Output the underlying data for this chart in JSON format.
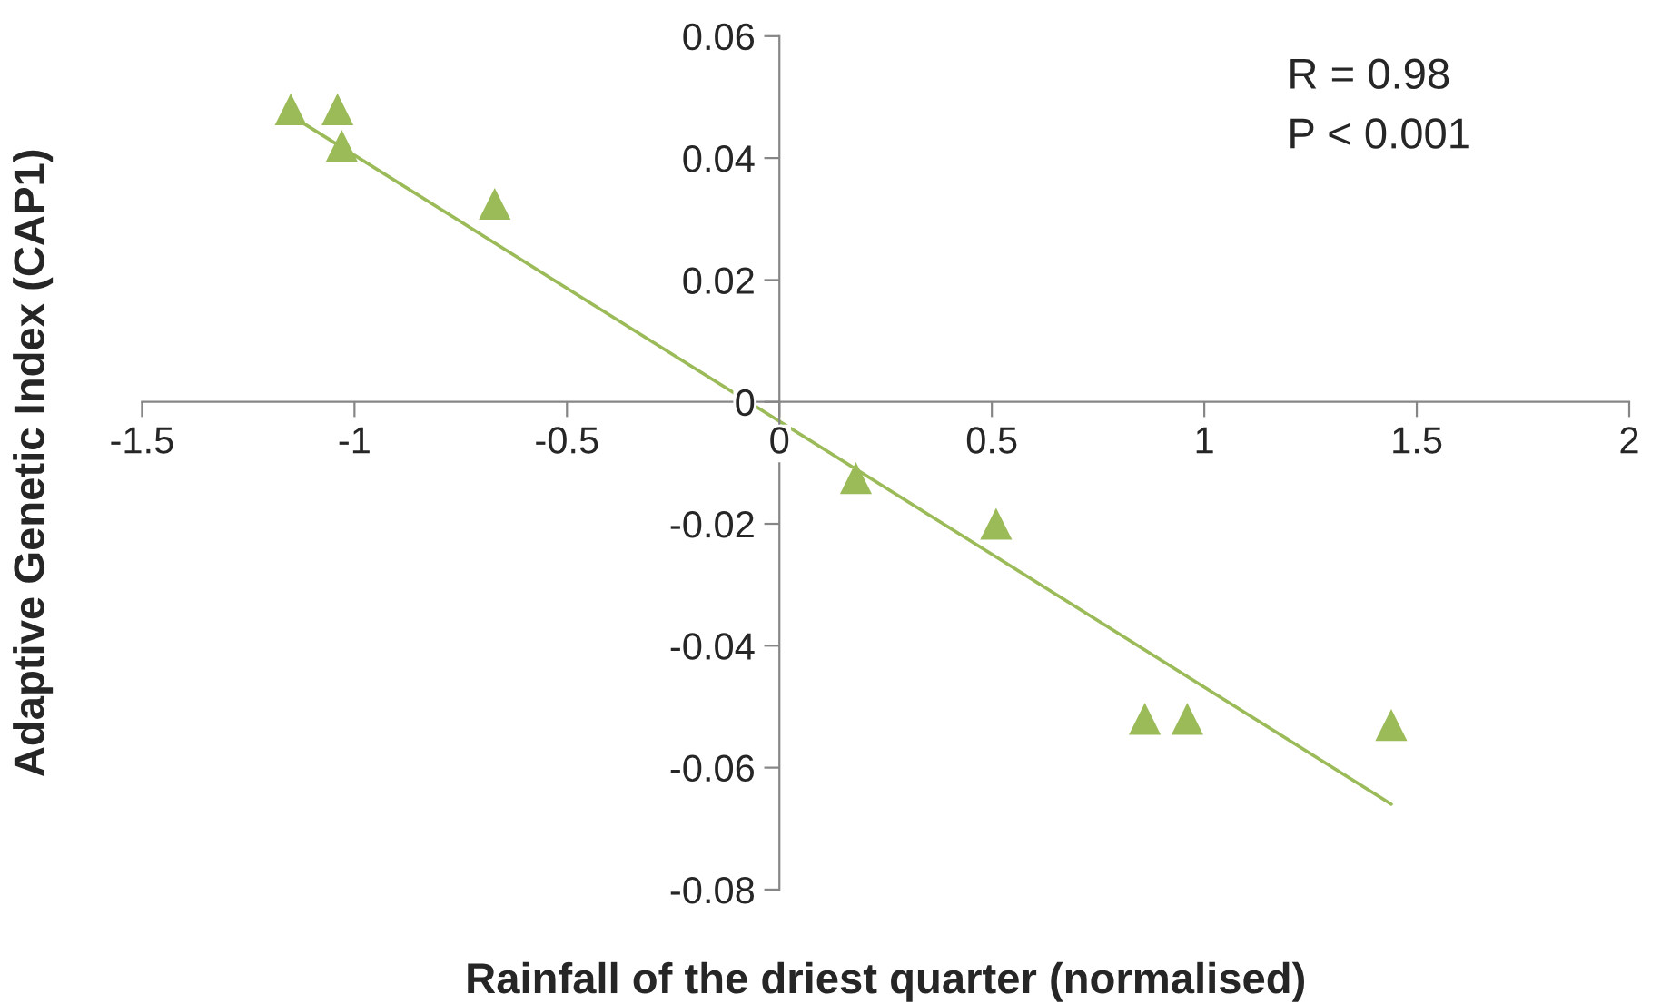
{
  "chart_data": {
    "type": "scatter",
    "xlabel": "Rainfall of the driest quarter (normalised)",
    "ylabel": "Adaptive Genetic Index (CAP1)",
    "series": [
      {
        "color": "#9bbb59",
        "marker": "triangle",
        "x": [
          -1.15,
          -1.04,
          -1.03,
          -0.67,
          0.18,
          0.51,
          0.86,
          0.96,
          1.44
        ],
        "values": [
          0.048,
          0.048,
          0.042,
          0.0325,
          -0.0125,
          -0.02,
          -0.052,
          -0.052,
          -0.053
        ]
      },
      {
        "type": "line",
        "color": "#9bbb59",
        "x": [
          -1.15,
          1.44
        ],
        "values": [
          0.047,
          -0.066
        ]
      }
    ],
    "xlim": [
      -1.5,
      2
    ],
    "xticks": [
      -1.5,
      -1,
      -0.5,
      0,
      0.5,
      1,
      1.5,
      2
    ],
    "ylim": [
      -0.08,
      0.06
    ],
    "yticks": [
      -0.08,
      -0.06,
      -0.04,
      -0.02,
      0,
      0.02,
      0.04,
      0.06
    ],
    "grid": false,
    "legend": false,
    "annotations": [
      "R = 0.98",
      "P < 0.001"
    ]
  }
}
